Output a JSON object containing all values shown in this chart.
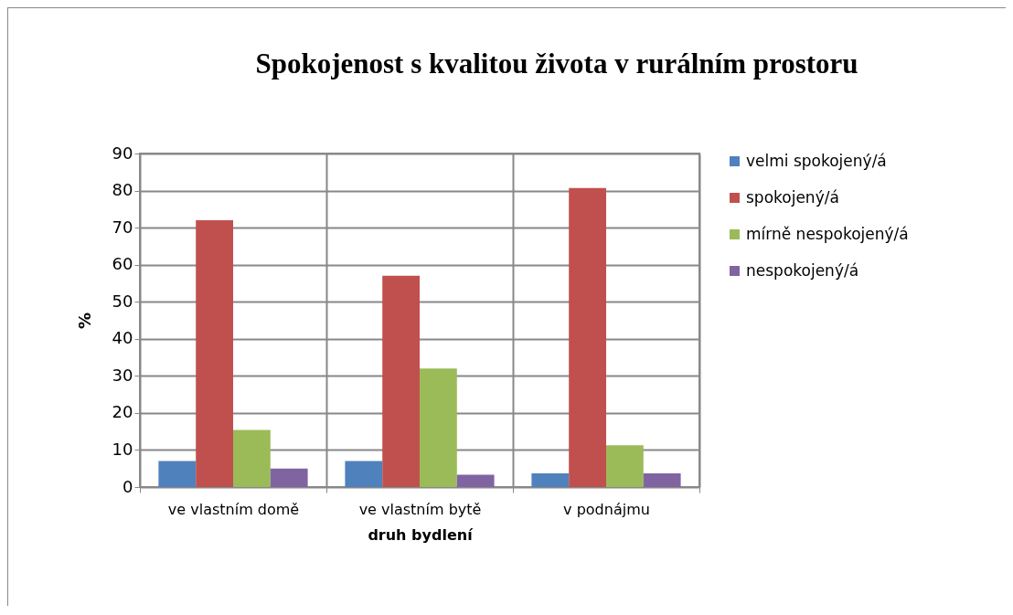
{
  "chart_data": {
    "type": "bar",
    "title": "Spokojenost s kvalitou života v rurálním prostoru",
    "xlabel": "druh bydlení",
    "ylabel": "%",
    "categories": [
      "ve vlastním domě",
      "ve vlastním bytě",
      "v podnájmu"
    ],
    "series": [
      {
        "name": "velmi spokojený/á",
        "color": "#4f81bd",
        "values": [
          7.0,
          7.0,
          3.7
        ]
      },
      {
        "name": "spokojený/á",
        "color": "#c0504d",
        "values": [
          72.0,
          57.0,
          80.7
        ]
      },
      {
        "name": "mírně nespokojený/á",
        "color": "#9bbb59",
        "values": [
          15.4,
          32.0,
          11.3
        ]
      },
      {
        "name": "nespokojený/á",
        "color": "#8064a2",
        "values": [
          5.0,
          3.3,
          3.7
        ]
      }
    ],
    "ylim": [
      0,
      90
    ],
    "yticks": [
      0,
      10,
      20,
      30,
      40,
      50,
      60,
      70,
      80,
      90
    ],
    "grid": true,
    "legend": "right"
  }
}
